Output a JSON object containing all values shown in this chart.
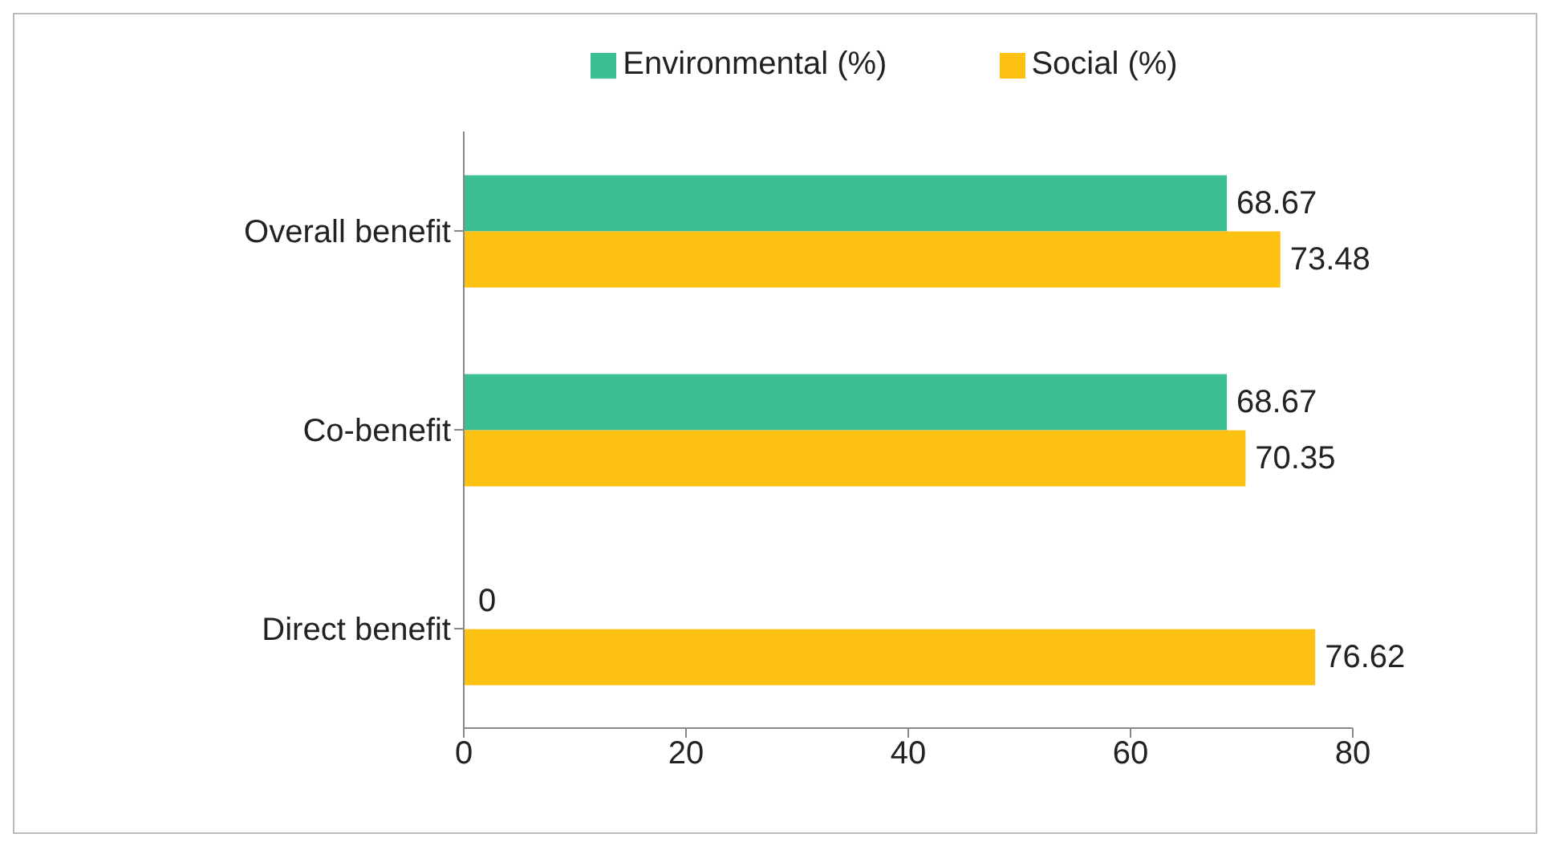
{
  "chart_data": {
    "type": "bar",
    "orientation": "horizontal",
    "categories": [
      "Overall benefit",
      "Co-benefit",
      "Direct benefit"
    ],
    "series": [
      {
        "name": "Environmental (%)",
        "color": "#3dbf94",
        "values": [
          68.67,
          68.67,
          0
        ]
      },
      {
        "name": "Social (%)",
        "color": "#fdc114",
        "values": [
          73.48,
          70.35,
          76.62
        ]
      }
    ],
    "xlim": [
      0,
      80
    ],
    "xticks": [
      0,
      20,
      40,
      60,
      80
    ],
    "grid": false,
    "legend": "top",
    "data_labels": true
  }
}
